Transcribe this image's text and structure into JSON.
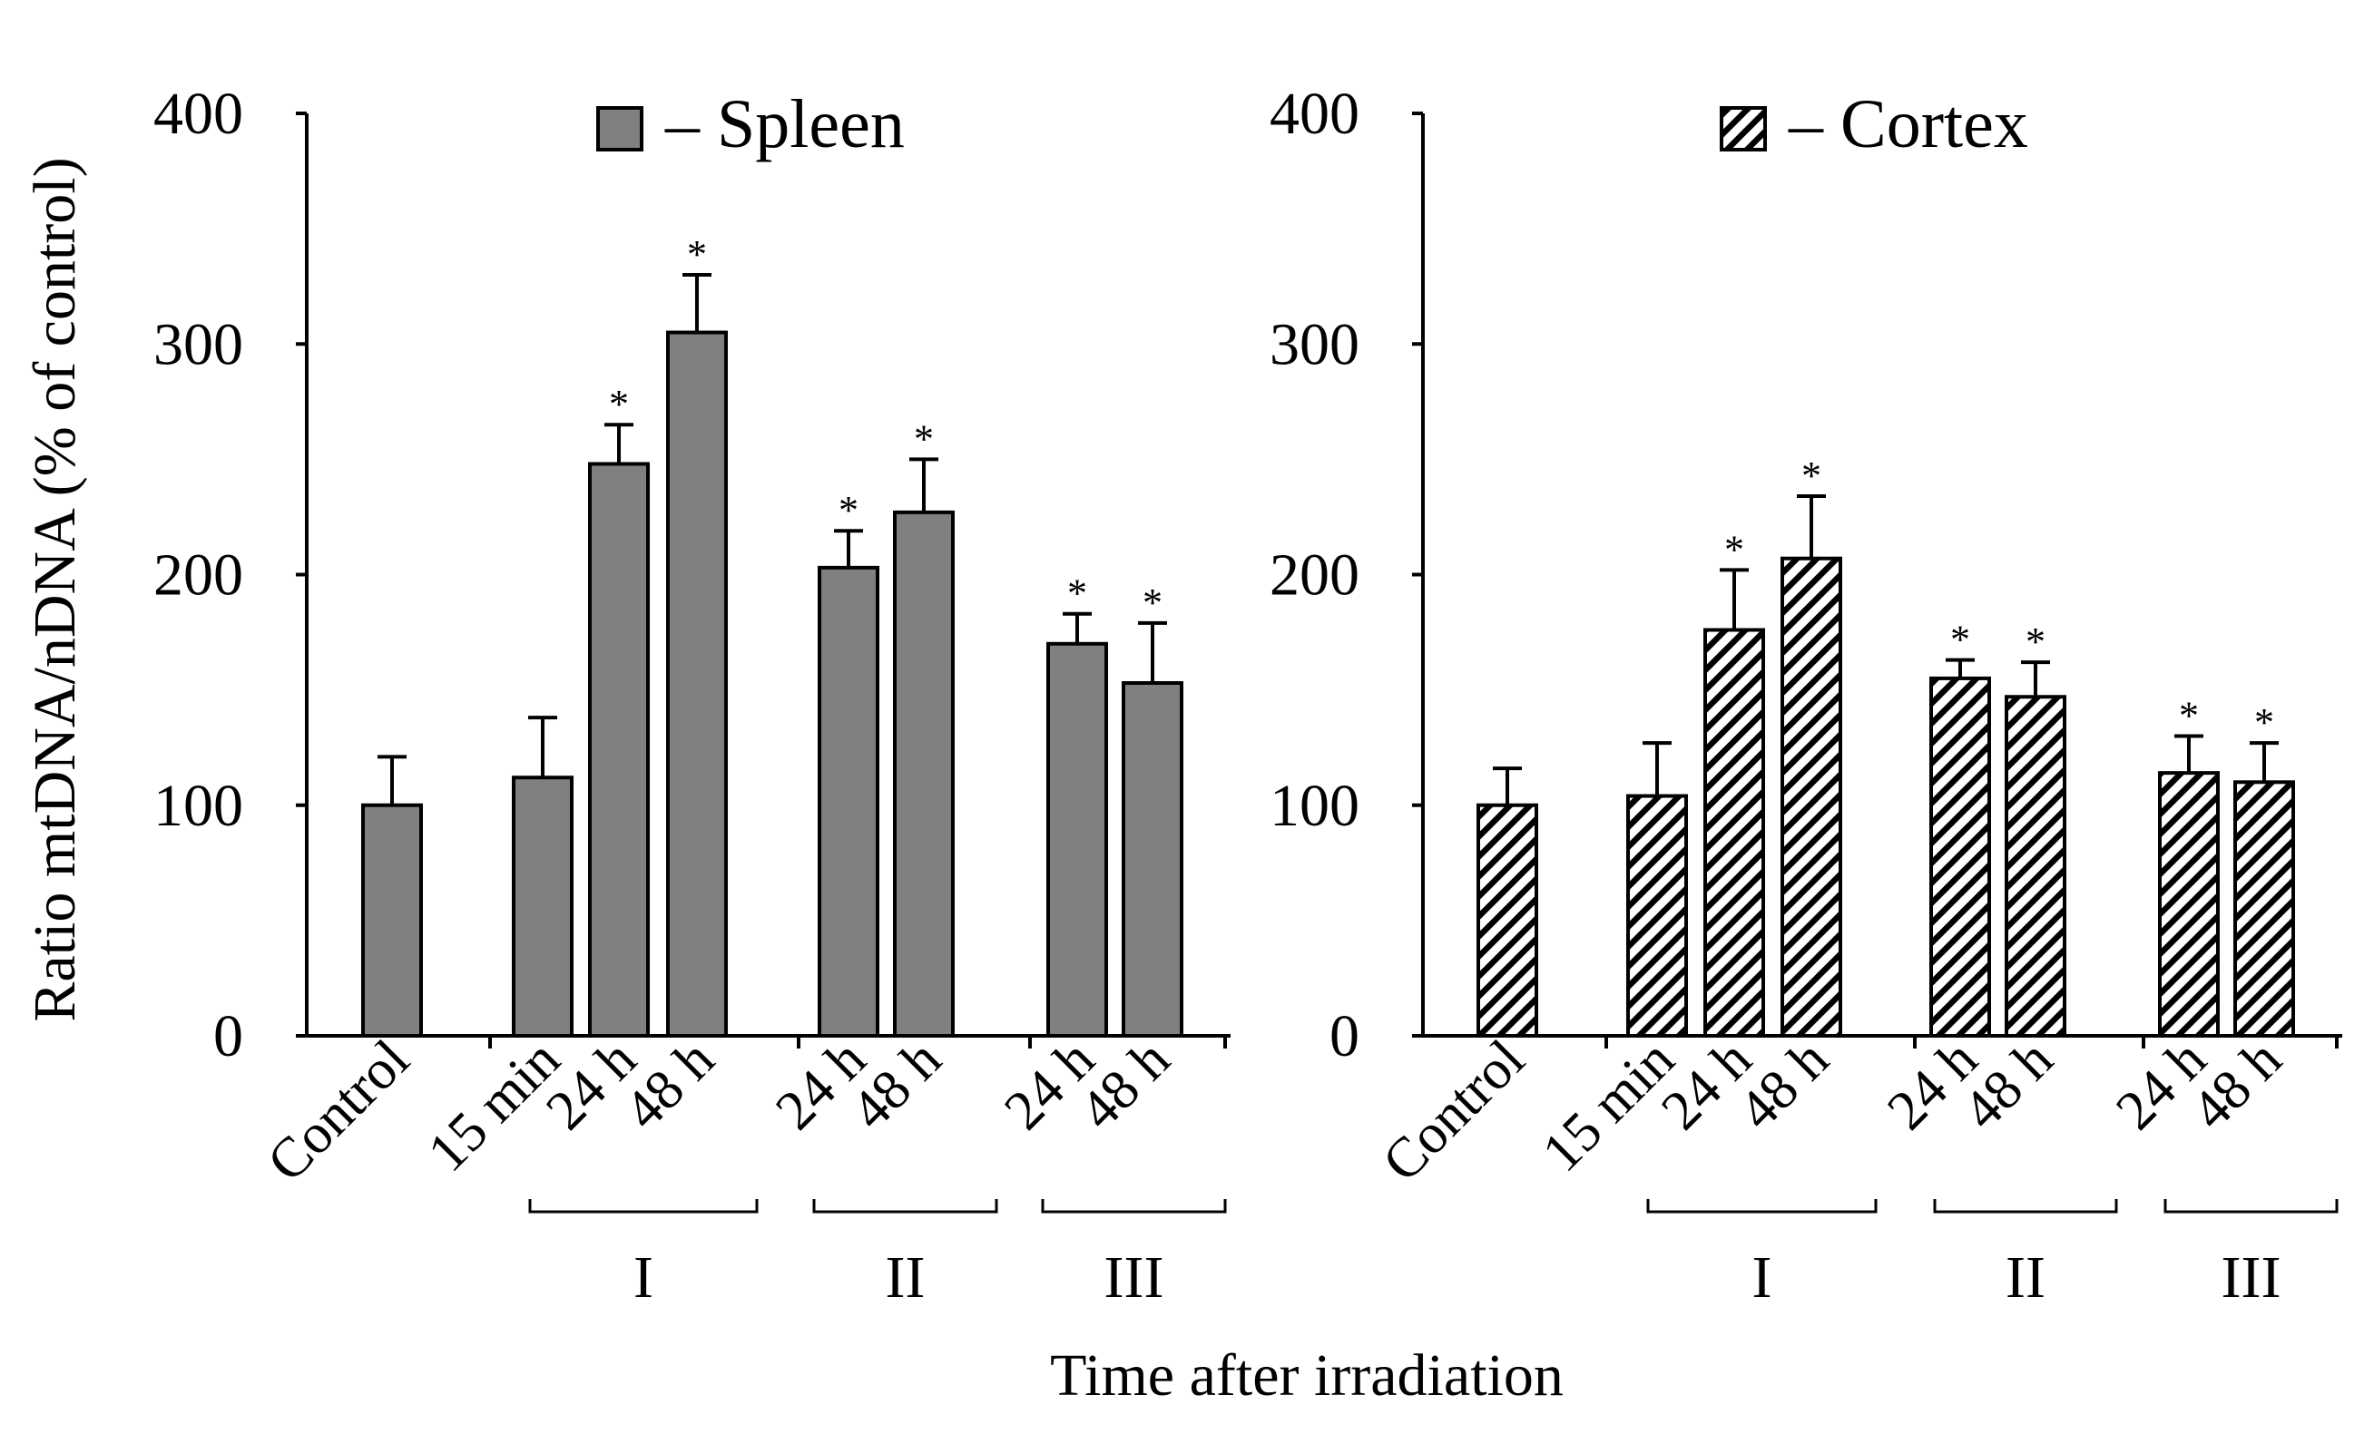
{
  "colors": {
    "spleen_fill": "#808080",
    "cortex_fill": "#ffffff",
    "stroke": "#000000",
    "background": "#ffffff"
  },
  "shared": {
    "ylabel": "Ratio mtDNA/nDNA (% of control)",
    "xlabel": "Time after irradiation",
    "significance_marker": "*"
  },
  "chart_data": [
    {
      "type": "bar",
      "panel": "spleen",
      "legend": {
        "label": "– Spleen",
        "swatch": "solid-gray"
      },
      "ylim": [
        0,
        400
      ],
      "yticks": [
        "0",
        "100",
        "200",
        "300",
        "400"
      ],
      "xlabel": "Time after irradiation",
      "ylabel": "Ratio mtDNA/nDNA (% of control)",
      "categories": [
        "Control",
        "15 min",
        "24 h",
        "48 h",
        "24 h",
        "48 h",
        "24 h",
        "48 h"
      ],
      "groups": [
        "",
        "I",
        "I",
        "I",
        "II",
        "II",
        "III",
        "III"
      ],
      "group_labels": [
        "I",
        "II",
        "III"
      ],
      "values": [
        100,
        112,
        248,
        305,
        203,
        227,
        170,
        153
      ],
      "errors": [
        21,
        26,
        17,
        25,
        16,
        23,
        13,
        26
      ],
      "significant": [
        false,
        false,
        true,
        true,
        true,
        true,
        true,
        true
      ]
    },
    {
      "type": "bar",
      "panel": "cortex",
      "legend": {
        "label": "– Cortex",
        "swatch": "hatched"
      },
      "ylim": [
        0,
        400
      ],
      "yticks": [
        "0",
        "100",
        "200",
        "300",
        "400"
      ],
      "xlabel": "Time after irradiation",
      "ylabel": "Ratio mtDNA/nDNA (% of control)",
      "categories": [
        "Control",
        "15 min",
        "24 h",
        "48 h",
        "24 h",
        "48 h",
        "24 h",
        "48 h"
      ],
      "groups": [
        "",
        "I",
        "I",
        "I",
        "II",
        "II",
        "III",
        "III"
      ],
      "group_labels": [
        "I",
        "II",
        "III"
      ],
      "values": [
        100,
        104,
        176,
        207,
        155,
        147,
        114,
        110
      ],
      "errors": [
        16,
        23,
        26,
        27,
        8,
        15,
        16,
        17
      ],
      "significant": [
        false,
        false,
        true,
        true,
        true,
        true,
        true,
        true
      ]
    }
  ]
}
